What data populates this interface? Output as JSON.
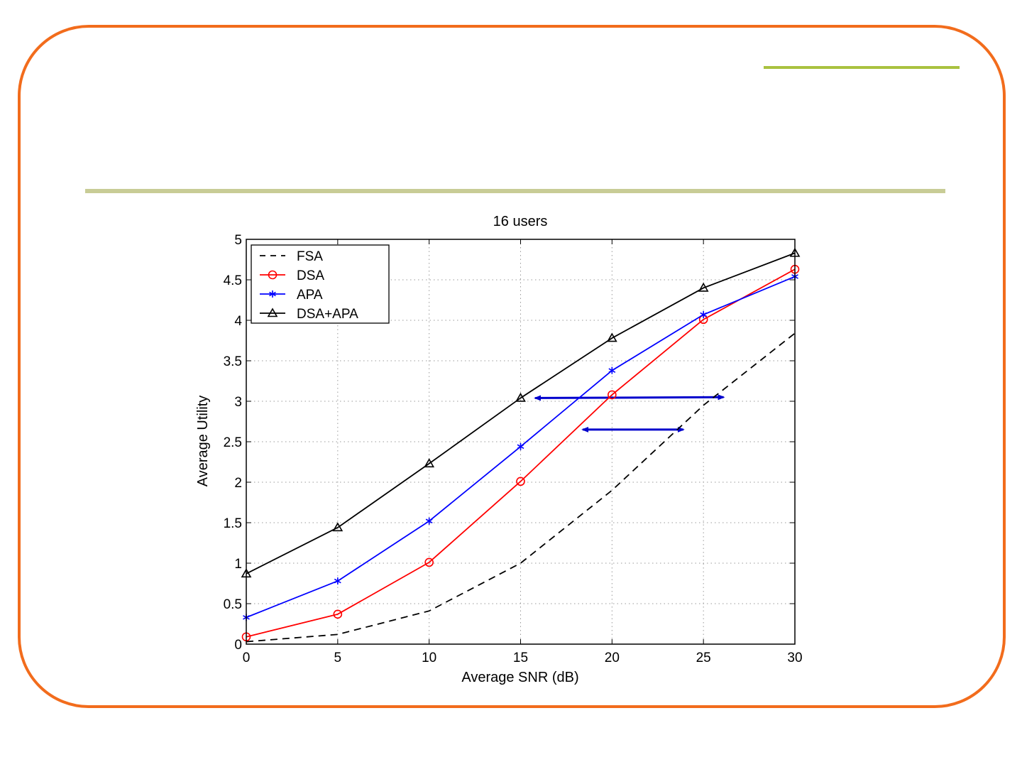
{
  "colors": {
    "frame": "#f26c1c",
    "accent_top": "#a9c23f",
    "accent_mid": "#c8cc96",
    "annotation_arrow": "#0000cc"
  },
  "chart_data": {
    "type": "line",
    "title": "16 users",
    "xlabel": "Average SNR (dB)",
    "ylabel": "Average Utility",
    "x": [
      0,
      5,
      10,
      15,
      20,
      25,
      30
    ],
    "xlim": [
      0,
      30
    ],
    "ylim": [
      0,
      5
    ],
    "xticks": [
      "0",
      "5",
      "10",
      "15",
      "20",
      "25",
      "30"
    ],
    "yticks": [
      "0",
      "0.5",
      "1",
      "1.5",
      "2",
      "2.5",
      "3",
      "3.5",
      "4",
      "4.5",
      "5"
    ],
    "grid": true,
    "legend_position": "top-left",
    "series": [
      {
        "name": "FSA",
        "values": [
          0.03,
          0.12,
          0.41,
          1.0,
          1.9,
          2.95,
          3.84
        ],
        "color": "#000000",
        "style": "dashed",
        "marker": "none"
      },
      {
        "name": "DSA",
        "values": [
          0.09,
          0.37,
          1.01,
          2.01,
          3.08,
          4.01,
          4.63
        ],
        "color": "#ff0000",
        "style": "solid",
        "marker": "circle"
      },
      {
        "name": "APA",
        "values": [
          0.33,
          0.78,
          1.52,
          2.44,
          3.38,
          4.07,
          4.54
        ],
        "color": "#0000ff",
        "style": "solid",
        "marker": "star"
      },
      {
        "name": "DSA+APA",
        "values": [
          0.87,
          1.44,
          2.23,
          3.04,
          3.78,
          4.4,
          4.83
        ],
        "color": "#000000",
        "style": "solid",
        "marker": "triangle"
      }
    ],
    "annotations": [
      {
        "type": "double-arrow",
        "x_from": 15.8,
        "x_to": 26.1,
        "y_from": 3.04,
        "y_to": 3.05
      },
      {
        "type": "double-arrow",
        "x_from": 18.4,
        "x_to": 23.9,
        "y_from": 2.65,
        "y_to": 2.65
      }
    ]
  }
}
